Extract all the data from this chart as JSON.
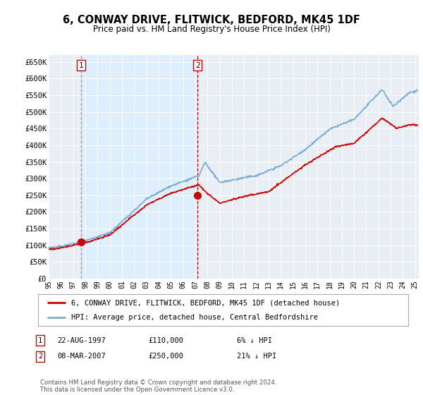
{
  "title": "6, CONWAY DRIVE, FLITWICK, BEDFORD, MK45 1DF",
  "subtitle": "Price paid vs. HM Land Registry's House Price Index (HPI)",
  "ylabel_ticks": [
    "£0",
    "£50K",
    "£100K",
    "£150K",
    "£200K",
    "£250K",
    "£300K",
    "£350K",
    "£400K",
    "£450K",
    "£500K",
    "£550K",
    "£600K",
    "£650K"
  ],
  "ytick_values": [
    0,
    50000,
    100000,
    150000,
    200000,
    250000,
    300000,
    350000,
    400000,
    450000,
    500000,
    550000,
    600000,
    650000
  ],
  "ylim": [
    0,
    670000
  ],
  "purchases": [
    {
      "date_num": 1997.64,
      "price": 110000,
      "label": "1"
    },
    {
      "date_num": 2007.18,
      "price": 250000,
      "label": "2"
    }
  ],
  "hpi_color": "#7aaed4",
  "price_color": "#cc0000",
  "shade_color": "#ddeeff",
  "bg_color": "#e8eef4",
  "legend_entries": [
    "6, CONWAY DRIVE, FLITWICK, BEDFORD, MK45 1DF (detached house)",
    "HPI: Average price, detached house, Central Bedfordshire"
  ],
  "table_rows": [
    {
      "num": "1",
      "date": "22-AUG-1997",
      "price": "£110,000",
      "hpi": "6% ↓ HPI"
    },
    {
      "num": "2",
      "date": "08-MAR-2007",
      "price": "£250,000",
      "hpi": "21% ↓ HPI"
    }
  ],
  "footnote": "Contains HM Land Registry data © Crown copyright and database right 2024.\nThis data is licensed under the Open Government Licence v3.0.",
  "xmin": 1995.0,
  "xmax": 2025.3
}
